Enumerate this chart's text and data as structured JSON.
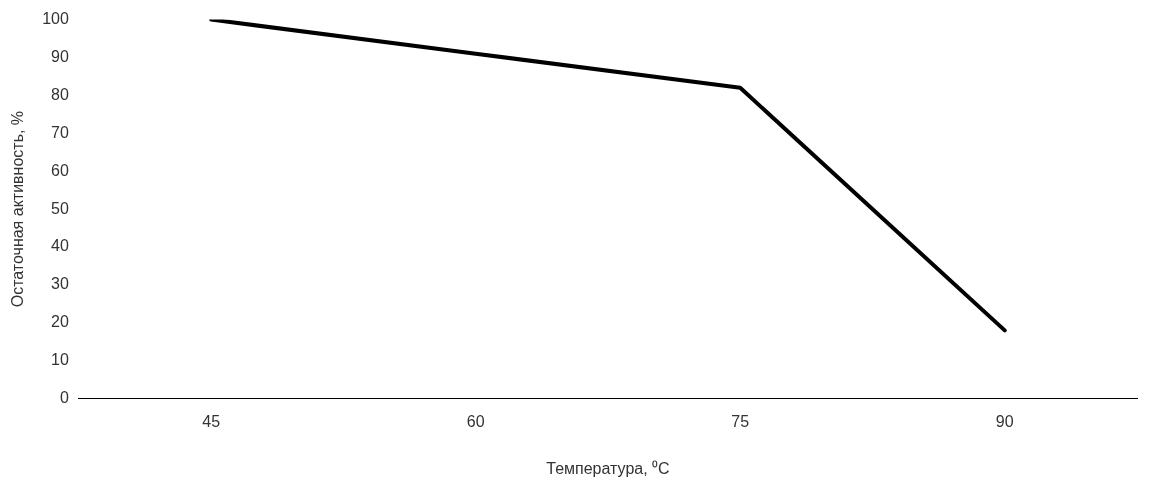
{
  "chart_data": {
    "type": "line",
    "xlabel": "Температура, ⁰С",
    "ylabel": "Остаточная активность, %",
    "categories": [
      "45",
      "60",
      "75",
      "90"
    ],
    "series": [
      {
        "color": "#000000",
        "values": [
          100,
          91,
          82,
          18
        ]
      }
    ],
    "ylim": [
      0,
      100
    ],
    "yticks": [
      0,
      10,
      20,
      30,
      40,
      50,
      60,
      70,
      80,
      90,
      100
    ],
    "grid": false,
    "legend": false,
    "marker": "none",
    "line_style": "solid"
  }
}
